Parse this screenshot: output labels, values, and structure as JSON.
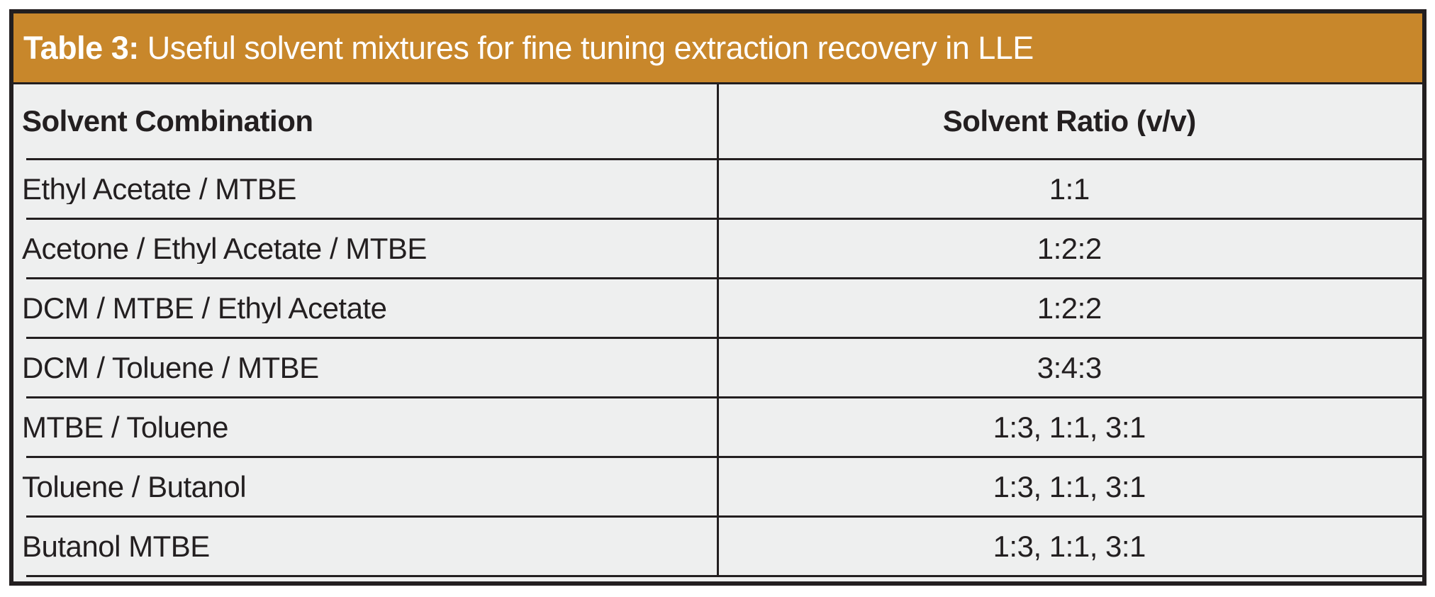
{
  "header": {
    "label": "Table 3:",
    "title": "Useful solvent mixtures for fine tuning extraction recovery in LLE"
  },
  "table": {
    "columns": [
      "Solvent Combination",
      "Solvent Ratio (v/v)"
    ],
    "rows": [
      {
        "combination": "Ethyl Acetate / MTBE",
        "ratio": "1:1"
      },
      {
        "combination": "Acetone / Ethyl Acetate / MTBE",
        "ratio": "1:2:2"
      },
      {
        "combination": "DCM / MTBE / Ethyl Acetate",
        "ratio": "1:2:2"
      },
      {
        "combination": "DCM / Toluene / MTBE",
        "ratio": "3:4:3"
      },
      {
        "combination": "MTBE / Toluene",
        "ratio": "1:3, 1:1, 3:1"
      },
      {
        "combination": "Toluene / Butanol",
        "ratio": "1:3, 1:1, 3:1"
      },
      {
        "combination": "Butanol MTBE",
        "ratio": "1:3, 1:1, 3:1"
      }
    ]
  },
  "colors": {
    "accent": "#C8872B",
    "row_background": "#EEEFEF",
    "border": "#231F20",
    "title_text": "#FFFFFF"
  }
}
